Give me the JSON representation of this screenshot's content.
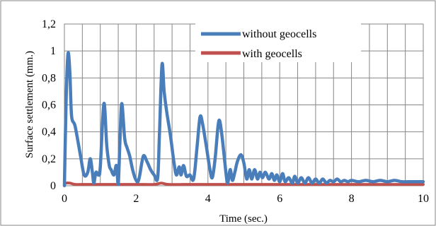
{
  "chart_data": {
    "type": "line",
    "title": "",
    "xlabel": "Time (sec.)",
    "ylabel": "Surface settlement (mm.)",
    "xlim": [
      0,
      10
    ],
    "ylim": [
      0,
      1.2
    ],
    "x_ticks": [
      0,
      2,
      4,
      6,
      8,
      10
    ],
    "x_tick_labels": [
      "0",
      "2",
      "4",
      "6",
      "8",
      "10"
    ],
    "y_ticks": [
      0,
      0.2,
      0.4,
      0.6,
      0.8,
      1,
      1.2
    ],
    "y_tick_labels": [
      "0",
      "0,2",
      "0,4",
      "0,6",
      "0,8",
      "1",
      "1,2"
    ],
    "grid": true,
    "legend_position": "top-right",
    "series": [
      {
        "name": "without geocells",
        "color": "#4a7ebb",
        "points": [
          [
            0,
            0
          ],
          [
            0.05,
            0.65
          ],
          [
            0.1,
            0.98
          ],
          [
            0.15,
            0.85
          ],
          [
            0.2,
            0.52
          ],
          [
            0.3,
            0.44
          ],
          [
            0.45,
            0.22
          ],
          [
            0.55,
            0.08
          ],
          [
            0.65,
            0.1
          ],
          [
            0.72,
            0.2
          ],
          [
            0.78,
            0.1
          ],
          [
            0.82,
            0.02
          ],
          [
            0.88,
            0.1
          ],
          [
            0.95,
            0.08
          ],
          [
            1.0,
            0.14
          ],
          [
            1.1,
            0.61
          ],
          [
            1.18,
            0.3
          ],
          [
            1.25,
            0.15
          ],
          [
            1.3,
            0.12
          ],
          [
            1.38,
            0.08
          ],
          [
            1.45,
            0.15
          ],
          [
            1.5,
            0.01
          ],
          [
            1.55,
            0.35
          ],
          [
            1.6,
            0.61
          ],
          [
            1.68,
            0.35
          ],
          [
            1.75,
            0.28
          ],
          [
            1.82,
            0.22
          ],
          [
            1.9,
            0.12
          ],
          [
            1.98,
            0.05
          ],
          [
            2.05,
            0.03
          ],
          [
            2.1,
            0.08
          ],
          [
            2.2,
            0.22
          ],
          [
            2.3,
            0.18
          ],
          [
            2.4,
            0.12
          ],
          [
            2.5,
            0.08
          ],
          [
            2.6,
            0.06
          ],
          [
            2.65,
            0.4
          ],
          [
            2.72,
            0.9
          ],
          [
            2.78,
            0.7
          ],
          [
            2.85,
            0.55
          ],
          [
            2.95,
            0.38
          ],
          [
            3.05,
            0.18
          ],
          [
            3.12,
            0.08
          ],
          [
            3.2,
            0.14
          ],
          [
            3.25,
            0.08
          ],
          [
            3.32,
            0.15
          ],
          [
            3.4,
            0.07
          ],
          [
            3.5,
            0.08
          ],
          [
            3.58,
            0.04
          ],
          [
            3.63,
            0.1
          ],
          [
            3.7,
            0.3
          ],
          [
            3.78,
            0.51
          ],
          [
            3.85,
            0.46
          ],
          [
            3.95,
            0.3
          ],
          [
            4.05,
            0.13
          ],
          [
            4.12,
            0.06
          ],
          [
            4.2,
            0.2
          ],
          [
            4.28,
            0.44
          ],
          [
            4.33,
            0.48
          ],
          [
            4.4,
            0.35
          ],
          [
            4.5,
            0.1
          ],
          [
            4.55,
            0.02
          ],
          [
            4.62,
            0.12
          ],
          [
            4.68,
            0.04
          ],
          [
            4.75,
            0.1
          ],
          [
            4.82,
            0.18
          ],
          [
            4.92,
            0.23
          ],
          [
            5.0,
            0.17
          ],
          [
            5.08,
            0.05
          ],
          [
            5.15,
            0.12
          ],
          [
            5.22,
            0.05
          ],
          [
            5.3,
            0.12
          ],
          [
            5.38,
            0.05
          ],
          [
            5.45,
            0.1
          ],
          [
            5.52,
            0.06
          ],
          [
            5.6,
            0.1
          ],
          [
            5.7,
            0.05
          ],
          [
            5.78,
            0.09
          ],
          [
            5.85,
            0.04
          ],
          [
            5.92,
            0.08
          ],
          [
            6.0,
            0.03
          ],
          [
            6.08,
            0.09
          ],
          [
            6.15,
            0.03
          ],
          [
            6.25,
            0.06
          ],
          [
            6.35,
            0.02
          ],
          [
            6.42,
            0.07
          ],
          [
            6.5,
            0.02
          ],
          [
            6.6,
            0.06
          ],
          [
            6.7,
            0.02
          ],
          [
            6.8,
            0.06
          ],
          [
            6.9,
            0.02
          ],
          [
            7.0,
            0.05
          ],
          [
            7.1,
            0.02
          ],
          [
            7.2,
            0.05
          ],
          [
            7.3,
            0.02
          ],
          [
            7.4,
            0.04
          ],
          [
            7.5,
            0.03
          ],
          [
            7.6,
            0.05
          ],
          [
            7.7,
            0.03
          ],
          [
            7.8,
            0.04
          ],
          [
            7.9,
            0.03
          ],
          [
            8.0,
            0.04
          ],
          [
            8.2,
            0.03
          ],
          [
            8.4,
            0.04
          ],
          [
            8.6,
            0.03
          ],
          [
            8.8,
            0.04
          ],
          [
            9.0,
            0.03
          ],
          [
            9.2,
            0.04
          ],
          [
            9.4,
            0.03
          ],
          [
            9.6,
            0.03
          ],
          [
            9.8,
            0.03
          ],
          [
            10.0,
            0.03
          ]
        ]
      },
      {
        "name": "with geocells",
        "color": "#c0504d",
        "points": [
          [
            0,
            0.01
          ],
          [
            0.05,
            0.02
          ],
          [
            0.15,
            0.02
          ],
          [
            0.3,
            0.01
          ],
          [
            0.5,
            0.01
          ],
          [
            1.0,
            0.01
          ],
          [
            1.5,
            0.01
          ],
          [
            2.0,
            0.01
          ],
          [
            2.5,
            0.01
          ],
          [
            2.7,
            0.02
          ],
          [
            2.9,
            0.01
          ],
          [
            3.5,
            0.01
          ],
          [
            4.0,
            0.01
          ],
          [
            5.0,
            0.01
          ],
          [
            6.0,
            0.01
          ],
          [
            7.0,
            0.01
          ],
          [
            8.0,
            0.01
          ],
          [
            9.0,
            0.01
          ],
          [
            10.0,
            0.01
          ]
        ]
      }
    ]
  }
}
